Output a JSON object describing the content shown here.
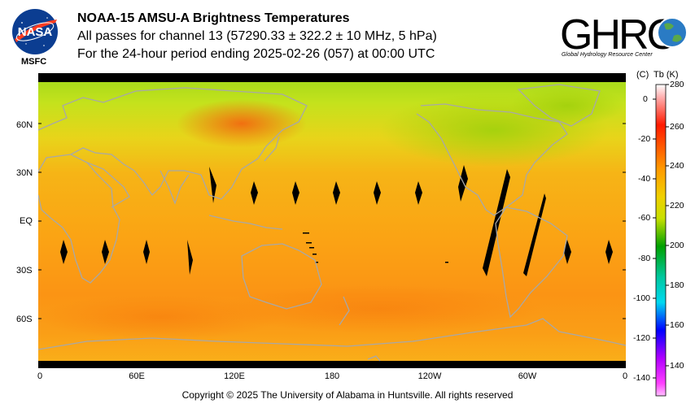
{
  "header": {
    "title": "NOAA-15 AMSU-A Brightness Temperatures",
    "line2": "All passes for channel 13 (57290.33 ± 322.2 ± 10 MHz, 5 hPa)",
    "line3": "For the 24-hour period ending 2025-02-26 (057) at 00:00 UTC"
  },
  "logos": {
    "nasa_text": "NASA",
    "msfc": "MSFC",
    "ghrc_text": "GHRC",
    "ghrc_sub": "Global Hydrology Resource Center"
  },
  "map": {
    "lat_labels": [
      "60N",
      "30N",
      "EQ",
      "30S",
      "60S"
    ],
    "lon_labels": [
      "0",
      "60E",
      "120E",
      "180",
      "120W",
      "60W",
      "0"
    ]
  },
  "colorbar": {
    "c_header": "(C)",
    "k_header": "Tb  (K)",
    "c_ticks": [
      "0",
      "-20",
      "-40",
      "-60",
      "-80",
      "-100",
      "-120",
      "-140"
    ],
    "k_ticks": [
      "280",
      "260",
      "240",
      "220",
      "200",
      "180",
      "160",
      "140"
    ],
    "colors": {
      "top": "#ffffff",
      "red": "#ff1a00",
      "orange": "#ff9900",
      "yellow": "#e6e600",
      "green": "#00a000",
      "cyan": "#00e0e0",
      "blue": "#0000ff",
      "magenta": "#ff00ff"
    }
  },
  "footer": {
    "copyright": "Copyright © 2025 The University of Alabama in Huntsville.  All rights reserved"
  }
}
